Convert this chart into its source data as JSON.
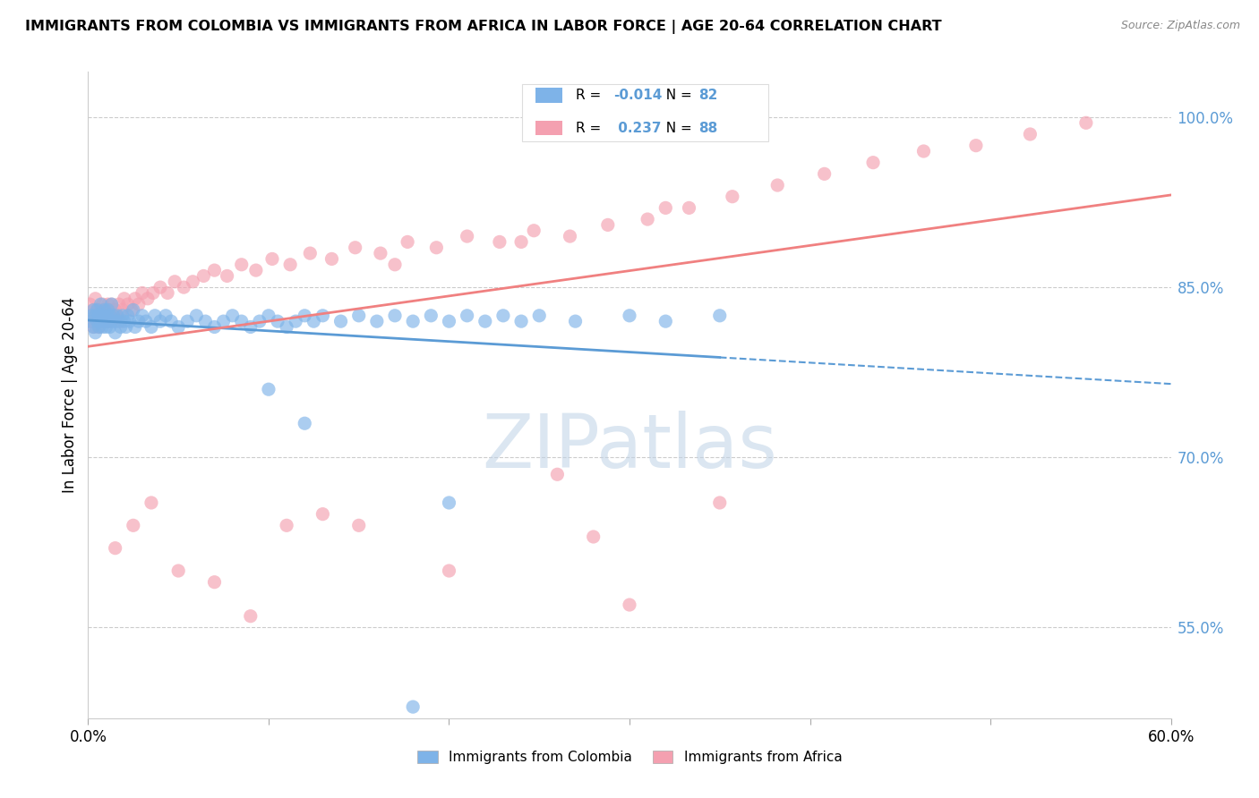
{
  "title": "IMMIGRANTS FROM COLOMBIA VS IMMIGRANTS FROM AFRICA IN LABOR FORCE | AGE 20-64 CORRELATION CHART",
  "source": "Source: ZipAtlas.com",
  "ylabel": "In Labor Force | Age 20-64",
  "xlim": [
    0.0,
    0.6
  ],
  "ylim": [
    0.47,
    1.04
  ],
  "xticks": [
    0.0,
    0.1,
    0.2,
    0.3,
    0.4,
    0.5,
    0.6
  ],
  "xticklabels": [
    "0.0%",
    "",
    "",
    "",
    "",
    "",
    "60.0%"
  ],
  "yticks_right": [
    0.55,
    0.7,
    0.85,
    1.0
  ],
  "ytick_right_labels": [
    "55.0%",
    "70.0%",
    "85.0%",
    "100.0%"
  ],
  "R_colombia": -0.014,
  "N_colombia": 82,
  "R_africa": 0.237,
  "N_africa": 88,
  "color_colombia": "#7EB3E8",
  "color_africa": "#F4A0B0",
  "color_line_colombia": "#5B9BD5",
  "color_line_africa": "#F08080",
  "watermark": "ZIPatlas",
  "watermark_color_r": 190,
  "watermark_color_g": 210,
  "watermark_color_b": 230,
  "legend_label_colombia": "Immigrants from Colombia",
  "legend_label_africa": "Immigrants from Africa",
  "colombia_x": [
    0.001,
    0.002,
    0.003,
    0.003,
    0.004,
    0.004,
    0.005,
    0.005,
    0.006,
    0.006,
    0.007,
    0.007,
    0.008,
    0.008,
    0.009,
    0.009,
    0.01,
    0.01,
    0.011,
    0.011,
    0.012,
    0.012,
    0.013,
    0.013,
    0.014,
    0.015,
    0.015,
    0.016,
    0.017,
    0.018,
    0.019,
    0.02,
    0.021,
    0.022,
    0.023,
    0.025,
    0.026,
    0.028,
    0.03,
    0.032,
    0.035,
    0.037,
    0.04,
    0.043,
    0.046,
    0.05,
    0.055,
    0.06,
    0.065,
    0.07,
    0.075,
    0.08,
    0.085,
    0.09,
    0.095,
    0.1,
    0.105,
    0.11,
    0.115,
    0.12,
    0.125,
    0.13,
    0.14,
    0.15,
    0.16,
    0.17,
    0.18,
    0.19,
    0.2,
    0.21,
    0.22,
    0.23,
    0.24,
    0.25,
    0.27,
    0.3,
    0.32,
    0.35,
    0.18,
    0.2,
    0.12,
    0.1
  ],
  "colombia_y": [
    0.82,
    0.825,
    0.83,
    0.815,
    0.825,
    0.81,
    0.82,
    0.83,
    0.815,
    0.825,
    0.82,
    0.835,
    0.815,
    0.825,
    0.82,
    0.83,
    0.825,
    0.815,
    0.82,
    0.83,
    0.825,
    0.815,
    0.82,
    0.835,
    0.825,
    0.82,
    0.81,
    0.825,
    0.82,
    0.815,
    0.825,
    0.82,
    0.815,
    0.825,
    0.82,
    0.83,
    0.815,
    0.82,
    0.825,
    0.82,
    0.815,
    0.825,
    0.82,
    0.825,
    0.82,
    0.815,
    0.82,
    0.825,
    0.82,
    0.815,
    0.82,
    0.825,
    0.82,
    0.815,
    0.82,
    0.825,
    0.82,
    0.815,
    0.82,
    0.825,
    0.82,
    0.825,
    0.82,
    0.825,
    0.82,
    0.825,
    0.82,
    0.825,
    0.82,
    0.825,
    0.82,
    0.825,
    0.82,
    0.825,
    0.82,
    0.825,
    0.82,
    0.825,
    0.48,
    0.66,
    0.73,
    0.76
  ],
  "africa_x": [
    0.001,
    0.002,
    0.003,
    0.003,
    0.004,
    0.004,
    0.005,
    0.005,
    0.006,
    0.006,
    0.007,
    0.007,
    0.008,
    0.008,
    0.009,
    0.009,
    0.01,
    0.01,
    0.011,
    0.011,
    0.012,
    0.012,
    0.013,
    0.013,
    0.014,
    0.015,
    0.016,
    0.017,
    0.018,
    0.019,
    0.02,
    0.022,
    0.024,
    0.026,
    0.028,
    0.03,
    0.033,
    0.036,
    0.04,
    0.044,
    0.048,
    0.053,
    0.058,
    0.064,
    0.07,
    0.077,
    0.085,
    0.093,
    0.102,
    0.112,
    0.123,
    0.135,
    0.148,
    0.162,
    0.177,
    0.193,
    0.21,
    0.228,
    0.247,
    0.267,
    0.288,
    0.31,
    0.333,
    0.357,
    0.382,
    0.408,
    0.435,
    0.463,
    0.492,
    0.522,
    0.553,
    0.17,
    0.24,
    0.32,
    0.28,
    0.35,
    0.3,
    0.2,
    0.15,
    0.26,
    0.13,
    0.11,
    0.09,
    0.07,
    0.05,
    0.035,
    0.025,
    0.015
  ],
  "africa_y": [
    0.835,
    0.82,
    0.83,
    0.815,
    0.825,
    0.84,
    0.82,
    0.83,
    0.825,
    0.815,
    0.83,
    0.82,
    0.825,
    0.835,
    0.82,
    0.83,
    0.825,
    0.82,
    0.835,
    0.82,
    0.825,
    0.83,
    0.82,
    0.835,
    0.825,
    0.83,
    0.825,
    0.835,
    0.82,
    0.83,
    0.84,
    0.835,
    0.83,
    0.84,
    0.835,
    0.845,
    0.84,
    0.845,
    0.85,
    0.845,
    0.855,
    0.85,
    0.855,
    0.86,
    0.865,
    0.86,
    0.87,
    0.865,
    0.875,
    0.87,
    0.88,
    0.875,
    0.885,
    0.88,
    0.89,
    0.885,
    0.895,
    0.89,
    0.9,
    0.895,
    0.905,
    0.91,
    0.92,
    0.93,
    0.94,
    0.95,
    0.96,
    0.97,
    0.975,
    0.985,
    0.995,
    0.87,
    0.89,
    0.92,
    0.63,
    0.66,
    0.57,
    0.6,
    0.64,
    0.685,
    0.65,
    0.64,
    0.56,
    0.59,
    0.6,
    0.66,
    0.64,
    0.62
  ]
}
